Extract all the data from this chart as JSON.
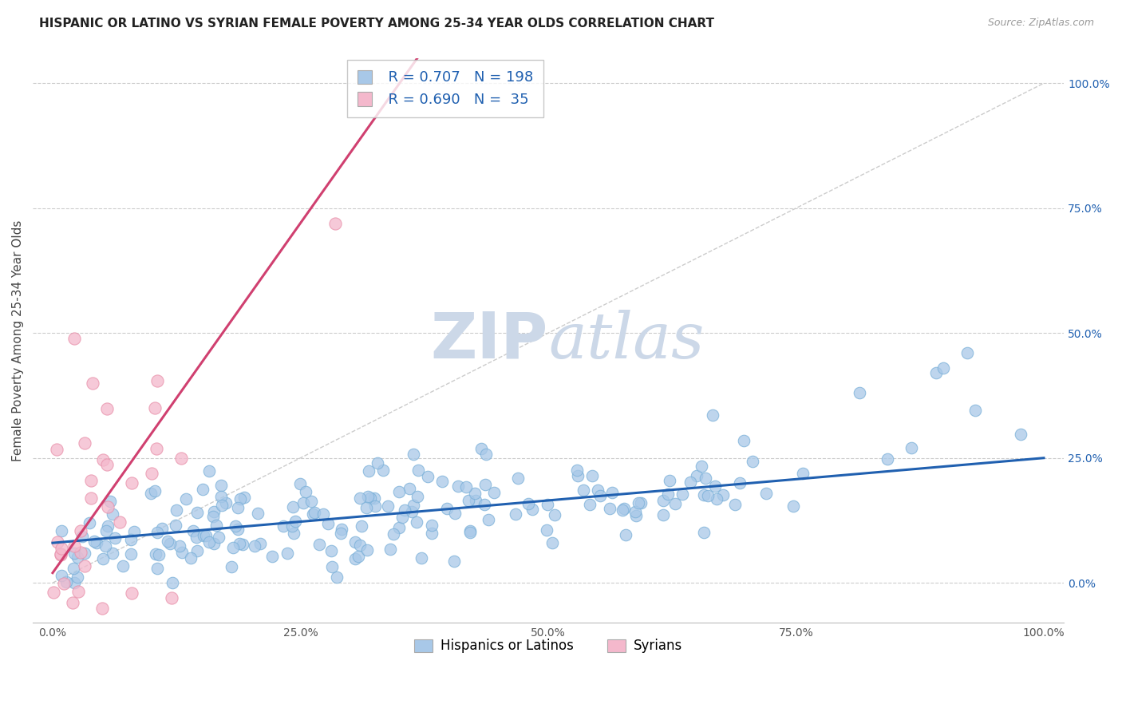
{
  "title": "HISPANIC OR LATINO VS SYRIAN FEMALE POVERTY AMONG 25-34 YEAR OLDS CORRELATION CHART",
  "source": "Source: ZipAtlas.com",
  "ylabel": "Female Poverty Among 25-34 Year Olds",
  "x_tick_labels": [
    "0.0%",
    "25.0%",
    "50.0%",
    "75.0%",
    "100.0%"
  ],
  "x_tick_positions": [
    0.0,
    0.25,
    0.5,
    0.75,
    1.0
  ],
  "y_tick_labels": [
    "0.0%",
    "25.0%",
    "50.0%",
    "75.0%",
    "100.0%"
  ],
  "y_tick_positions": [
    0.0,
    0.25,
    0.5,
    0.75,
    1.0
  ],
  "blue_scatter_color": "#a8c8e8",
  "blue_scatter_edge": "#7ab0d8",
  "pink_scatter_color": "#f4b8cc",
  "pink_scatter_edge": "#e890aa",
  "blue_line_color": "#2060b0",
  "pink_line_color": "#d04070",
  "ref_line_color": "#cccccc",
  "grid_color": "#cccccc",
  "background_color": "#ffffff",
  "watermark_zip": "ZIP",
  "watermark_atlas": "atlas",
  "watermark_color": "#ccd8e8",
  "legend_label1": "Hispanics or Latinos",
  "legend_label2": "Syrians",
  "title_fontsize": 11,
  "source_fontsize": 9,
  "axis_label_fontsize": 11,
  "tick_fontsize": 10,
  "legend_fontsize": 13,
  "blue_N": 198,
  "pink_N": 35,
  "blue_R": 0.707,
  "pink_R": 0.69,
  "blue_slope": 0.17,
  "blue_intercept": 0.08,
  "pink_slope": 2.8,
  "pink_intercept": 0.02,
  "xlim": [
    -0.02,
    1.02
  ],
  "ylim": [
    -0.08,
    1.05
  ]
}
